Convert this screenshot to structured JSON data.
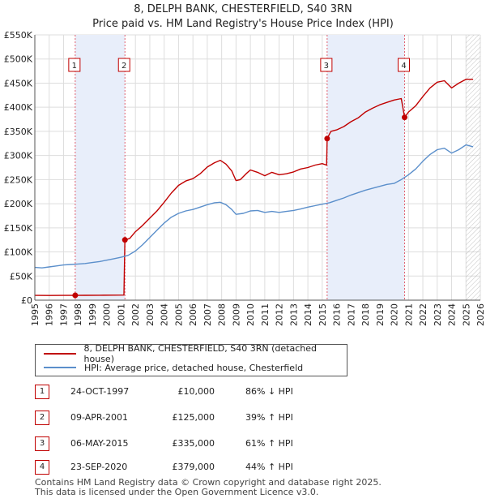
{
  "chart_data": {
    "type": "line",
    "title": "8, DELPH BANK, CHESTERFIELD, S40 3RN",
    "subtitle": "Price paid vs. HM Land Registry's House Price Index (HPI)",
    "xlabel": "",
    "ylabel": "",
    "xlim": [
      1995,
      2026
    ],
    "ylim": [
      0,
      550000
    ],
    "x_ticks": [
      1995,
      1996,
      1997,
      1998,
      1999,
      2000,
      2001,
      2002,
      2003,
      2004,
      2005,
      2006,
      2007,
      2008,
      2009,
      2010,
      2011,
      2012,
      2013,
      2014,
      2015,
      2016,
      2017,
      2018,
      2019,
      2020,
      2021,
      2022,
      2023,
      2024,
      2025,
      2026
    ],
    "y_ticks": [
      0,
      50000,
      100000,
      150000,
      200000,
      250000,
      300000,
      350000,
      400000,
      450000,
      500000,
      550000
    ],
    "y_tick_labels": [
      "£0",
      "£50K",
      "£100K",
      "£150K",
      "£200K",
      "£250K",
      "£300K",
      "£350K",
      "£400K",
      "£450K",
      "£500K",
      "£550K"
    ],
    "grid": true,
    "colors": {
      "price": "#c00000",
      "hpi": "#5b8fcb",
      "shade": "#e8eefa",
      "marker_line": "#e06070",
      "grid": "#dddddd",
      "hatch": "#888888"
    },
    "shaded_ranges": [
      [
        1997.81,
        2001.27
      ],
      [
        2015.34,
        2020.73
      ]
    ],
    "forecast_start": 2025.0,
    "series": [
      {
        "name": "8, DELPH BANK, CHESTERFIELD, S40 3RN (detached house)",
        "color": "#c00000",
        "points": [
          [
            1995.0,
            10000
          ],
          [
            1996.0,
            9800
          ],
          [
            1997.0,
            9900
          ],
          [
            1997.81,
            10000
          ],
          [
            1998.5,
            10100
          ],
          [
            1999.5,
            10200
          ],
          [
            2000.5,
            10400
          ],
          [
            2001.2,
            10600
          ],
          [
            2001.27,
            125000
          ],
          [
            2001.6,
            128000
          ],
          [
            2002.0,
            142000
          ],
          [
            2002.5,
            155000
          ],
          [
            2003.0,
            170000
          ],
          [
            2003.5,
            185000
          ],
          [
            2004.0,
            203000
          ],
          [
            2004.5,
            222000
          ],
          [
            2005.0,
            238000
          ],
          [
            2005.5,
            247000
          ],
          [
            2006.0,
            252000
          ],
          [
            2006.5,
            262000
          ],
          [
            2007.0,
            276000
          ],
          [
            2007.5,
            285000
          ],
          [
            2007.9,
            290000
          ],
          [
            2008.3,
            282000
          ],
          [
            2008.7,
            268000
          ],
          [
            2009.0,
            248000
          ],
          [
            2009.3,
            250000
          ],
          [
            2009.7,
            262000
          ],
          [
            2010.0,
            270000
          ],
          [
            2010.5,
            265000
          ],
          [
            2011.0,
            258000
          ],
          [
            2011.5,
            265000
          ],
          [
            2012.0,
            260000
          ],
          [
            2012.5,
            262000
          ],
          [
            2013.0,
            266000
          ],
          [
            2013.5,
            272000
          ],
          [
            2014.0,
            275000
          ],
          [
            2014.5,
            280000
          ],
          [
            2015.0,
            283000
          ],
          [
            2015.3,
            280000
          ],
          [
            2015.34,
            335000
          ],
          [
            2015.6,
            350000
          ],
          [
            2016.0,
            353000
          ],
          [
            2016.5,
            360000
          ],
          [
            2017.0,
            370000
          ],
          [
            2017.5,
            378000
          ],
          [
            2018.0,
            390000
          ],
          [
            2018.5,
            398000
          ],
          [
            2019.0,
            405000
          ],
          [
            2019.5,
            410000
          ],
          [
            2020.0,
            415000
          ],
          [
            2020.5,
            418000
          ],
          [
            2020.73,
            379000
          ],
          [
            2021.0,
            390000
          ],
          [
            2021.5,
            403000
          ],
          [
            2022.0,
            422000
          ],
          [
            2022.5,
            440000
          ],
          [
            2023.0,
            452000
          ],
          [
            2023.5,
            455000
          ],
          [
            2024.0,
            440000
          ],
          [
            2024.5,
            450000
          ],
          [
            2025.0,
            458000
          ],
          [
            2025.5,
            458000
          ]
        ]
      },
      {
        "name": "HPI: Average price, detached house, Chesterfield",
        "color": "#5b8fcb",
        "points": [
          [
            1995.0,
            68000
          ],
          [
            1995.5,
            67000
          ],
          [
            1996.0,
            69000
          ],
          [
            1996.5,
            71000
          ],
          [
            1997.0,
            73000
          ],
          [
            1997.5,
            74000
          ],
          [
            1998.0,
            75000
          ],
          [
            1998.5,
            76000
          ],
          [
            1999.0,
            78000
          ],
          [
            1999.5,
            80000
          ],
          [
            2000.0,
            83000
          ],
          [
            2000.5,
            86000
          ],
          [
            2001.0,
            89000
          ],
          [
            2001.5,
            93000
          ],
          [
            2002.0,
            102000
          ],
          [
            2002.5,
            115000
          ],
          [
            2003.0,
            130000
          ],
          [
            2003.5,
            145000
          ],
          [
            2004.0,
            160000
          ],
          [
            2004.5,
            172000
          ],
          [
            2005.0,
            180000
          ],
          [
            2005.5,
            185000
          ],
          [
            2006.0,
            188000
          ],
          [
            2006.5,
            193000
          ],
          [
            2007.0,
            198000
          ],
          [
            2007.5,
            202000
          ],
          [
            2007.9,
            203000
          ],
          [
            2008.3,
            198000
          ],
          [
            2008.7,
            188000
          ],
          [
            2009.0,
            178000
          ],
          [
            2009.5,
            180000
          ],
          [
            2010.0,
            185000
          ],
          [
            2010.5,
            186000
          ],
          [
            2011.0,
            182000
          ],
          [
            2011.5,
            184000
          ],
          [
            2012.0,
            182000
          ],
          [
            2012.5,
            184000
          ],
          [
            2013.0,
            186000
          ],
          [
            2013.5,
            189000
          ],
          [
            2014.0,
            193000
          ],
          [
            2014.5,
            196000
          ],
          [
            2015.0,
            199000
          ],
          [
            2015.5,
            202000
          ],
          [
            2016.0,
            207000
          ],
          [
            2016.5,
            212000
          ],
          [
            2017.0,
            218000
          ],
          [
            2017.5,
            223000
          ],
          [
            2018.0,
            228000
          ],
          [
            2018.5,
            232000
          ],
          [
            2019.0,
            236000
          ],
          [
            2019.5,
            240000
          ],
          [
            2020.0,
            242000
          ],
          [
            2020.5,
            250000
          ],
          [
            2021.0,
            260000
          ],
          [
            2021.5,
            272000
          ],
          [
            2022.0,
            288000
          ],
          [
            2022.5,
            302000
          ],
          [
            2023.0,
            312000
          ],
          [
            2023.5,
            315000
          ],
          [
            2024.0,
            305000
          ],
          [
            2024.5,
            312000
          ],
          [
            2025.0,
            322000
          ],
          [
            2025.5,
            318000
          ]
        ]
      }
    ],
    "sales": [
      {
        "num": "1",
        "x": 1997.81,
        "price": 10000
      },
      {
        "num": "2",
        "x": 2001.27,
        "price": 125000
      },
      {
        "num": "3",
        "x": 2015.34,
        "price": 335000
      },
      {
        "num": "4",
        "x": 2020.73,
        "price": 379000
      }
    ]
  },
  "legend": {
    "price_label": "8, DELPH BANK, CHESTERFIELD, S40 3RN (detached house)",
    "hpi_label": "HPI: Average price, detached house, Chesterfield"
  },
  "transactions": [
    {
      "num": "1",
      "date": "24-OCT-1997",
      "price": "£10,000",
      "hpi": "86% ↓ HPI"
    },
    {
      "num": "2",
      "date": "09-APR-2001",
      "price": "£125,000",
      "hpi": "39% ↑ HPI"
    },
    {
      "num": "3",
      "date": "06-MAY-2015",
      "price": "£335,000",
      "hpi": "61% ↑ HPI"
    },
    {
      "num": "4",
      "date": "23-SEP-2020",
      "price": "£379,000",
      "hpi": "44% ↑ HPI"
    }
  ],
  "footer": {
    "line1": "Contains HM Land Registry data © Crown copyright and database right 2025.",
    "line2": "This data is licensed under the Open Government Licence v3.0."
  }
}
